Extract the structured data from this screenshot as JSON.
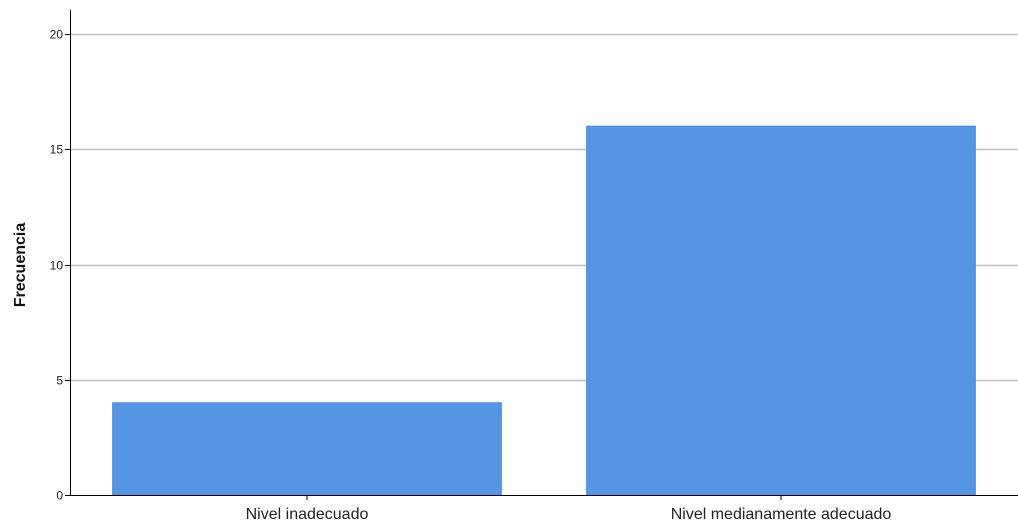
{
  "chart_data": {
    "type": "bar",
    "categories": [
      "Nivel inadecuado",
      "Nivel medianamente adecuado"
    ],
    "values": [
      4,
      16
    ],
    "xlabel": "",
    "ylabel": "Frecuencia",
    "ylim": [
      0,
      20
    ],
    "yticks": [
      0,
      5,
      10,
      15,
      20
    ],
    "grid": true,
    "bar_color": "#5596E4",
    "grid_color": "#BEBEBE",
    "axis_color": "#000000"
  }
}
